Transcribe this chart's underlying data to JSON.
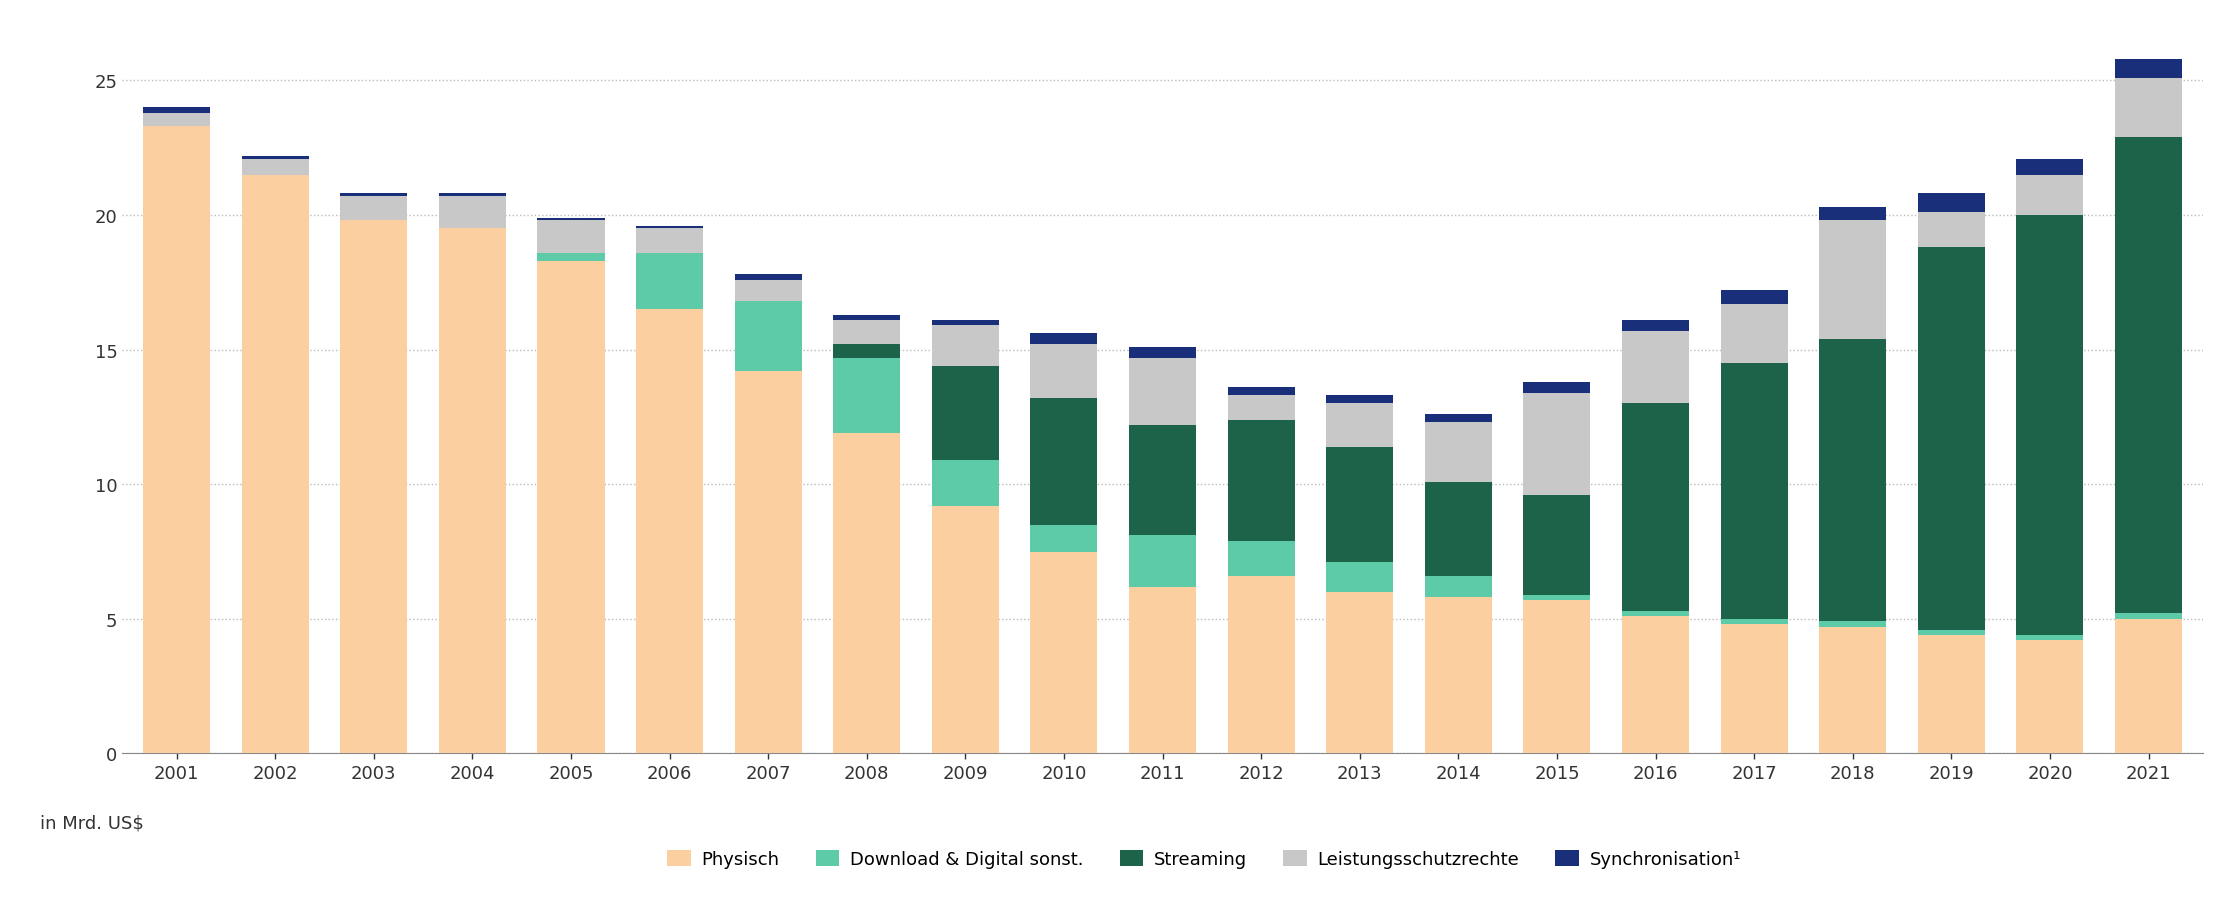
{
  "years": [
    2001,
    2002,
    2003,
    2004,
    2005,
    2006,
    2007,
    2008,
    2009,
    2010,
    2011,
    2012,
    2013,
    2014,
    2015,
    2016,
    2017,
    2018,
    2019,
    2020,
    2021
  ],
  "physisch": [
    23.3,
    21.5,
    19.8,
    19.5,
    18.3,
    16.5,
    14.2,
    11.9,
    9.2,
    7.5,
    6.2,
    6.6,
    6.0,
    5.8,
    5.7,
    5.1,
    4.8,
    4.7,
    4.4,
    4.2,
    5.0
  ],
  "download_digital": [
    0.0,
    0.0,
    0.0,
    0.0,
    0.3,
    2.1,
    2.6,
    2.8,
    1.7,
    1.0,
    1.9,
    1.3,
    1.1,
    0.8,
    0.2,
    0.2,
    0.2,
    0.2,
    0.2,
    0.2,
    0.2
  ],
  "streaming": [
    0.0,
    0.0,
    0.0,
    0.0,
    0.0,
    0.0,
    0.0,
    0.5,
    3.5,
    4.7,
    4.1,
    4.5,
    4.3,
    3.5,
    3.7,
    7.7,
    9.5,
    10.5,
    14.2,
    15.6,
    17.7
  ],
  "leistungsschutz": [
    0.5,
    0.6,
    0.9,
    1.2,
    1.2,
    0.9,
    0.8,
    0.9,
    1.5,
    2.0,
    2.5,
    0.9,
    1.6,
    2.2,
    3.8,
    2.7,
    2.2,
    4.4,
    1.3,
    1.5,
    2.2
  ],
  "synchronisation": [
    0.2,
    0.1,
    0.1,
    0.1,
    0.1,
    0.1,
    0.2,
    0.2,
    0.2,
    0.4,
    0.4,
    0.3,
    0.3,
    0.3,
    0.4,
    0.4,
    0.5,
    0.5,
    0.7,
    0.6,
    0.7
  ],
  "color_physisch": "#FCCFA0",
  "color_download": "#5ECBA8",
  "color_streaming": "#1D6349",
  "color_leistung": "#C8C8C8",
  "color_sync": "#1A2F7A",
  "ylim": [
    0,
    27
  ],
  "yticks": [
    0,
    5,
    10,
    15,
    20,
    25
  ],
  "ylabel": "in Mrd. US$",
  "legend_labels": [
    "Physisch",
    "Download & Digital sonst.",
    "Streaming",
    "Leistungsschutzrechte",
    "Synchronisation¹"
  ],
  "background_color": "#ffffff",
  "grid_color": "#bbbbbb"
}
